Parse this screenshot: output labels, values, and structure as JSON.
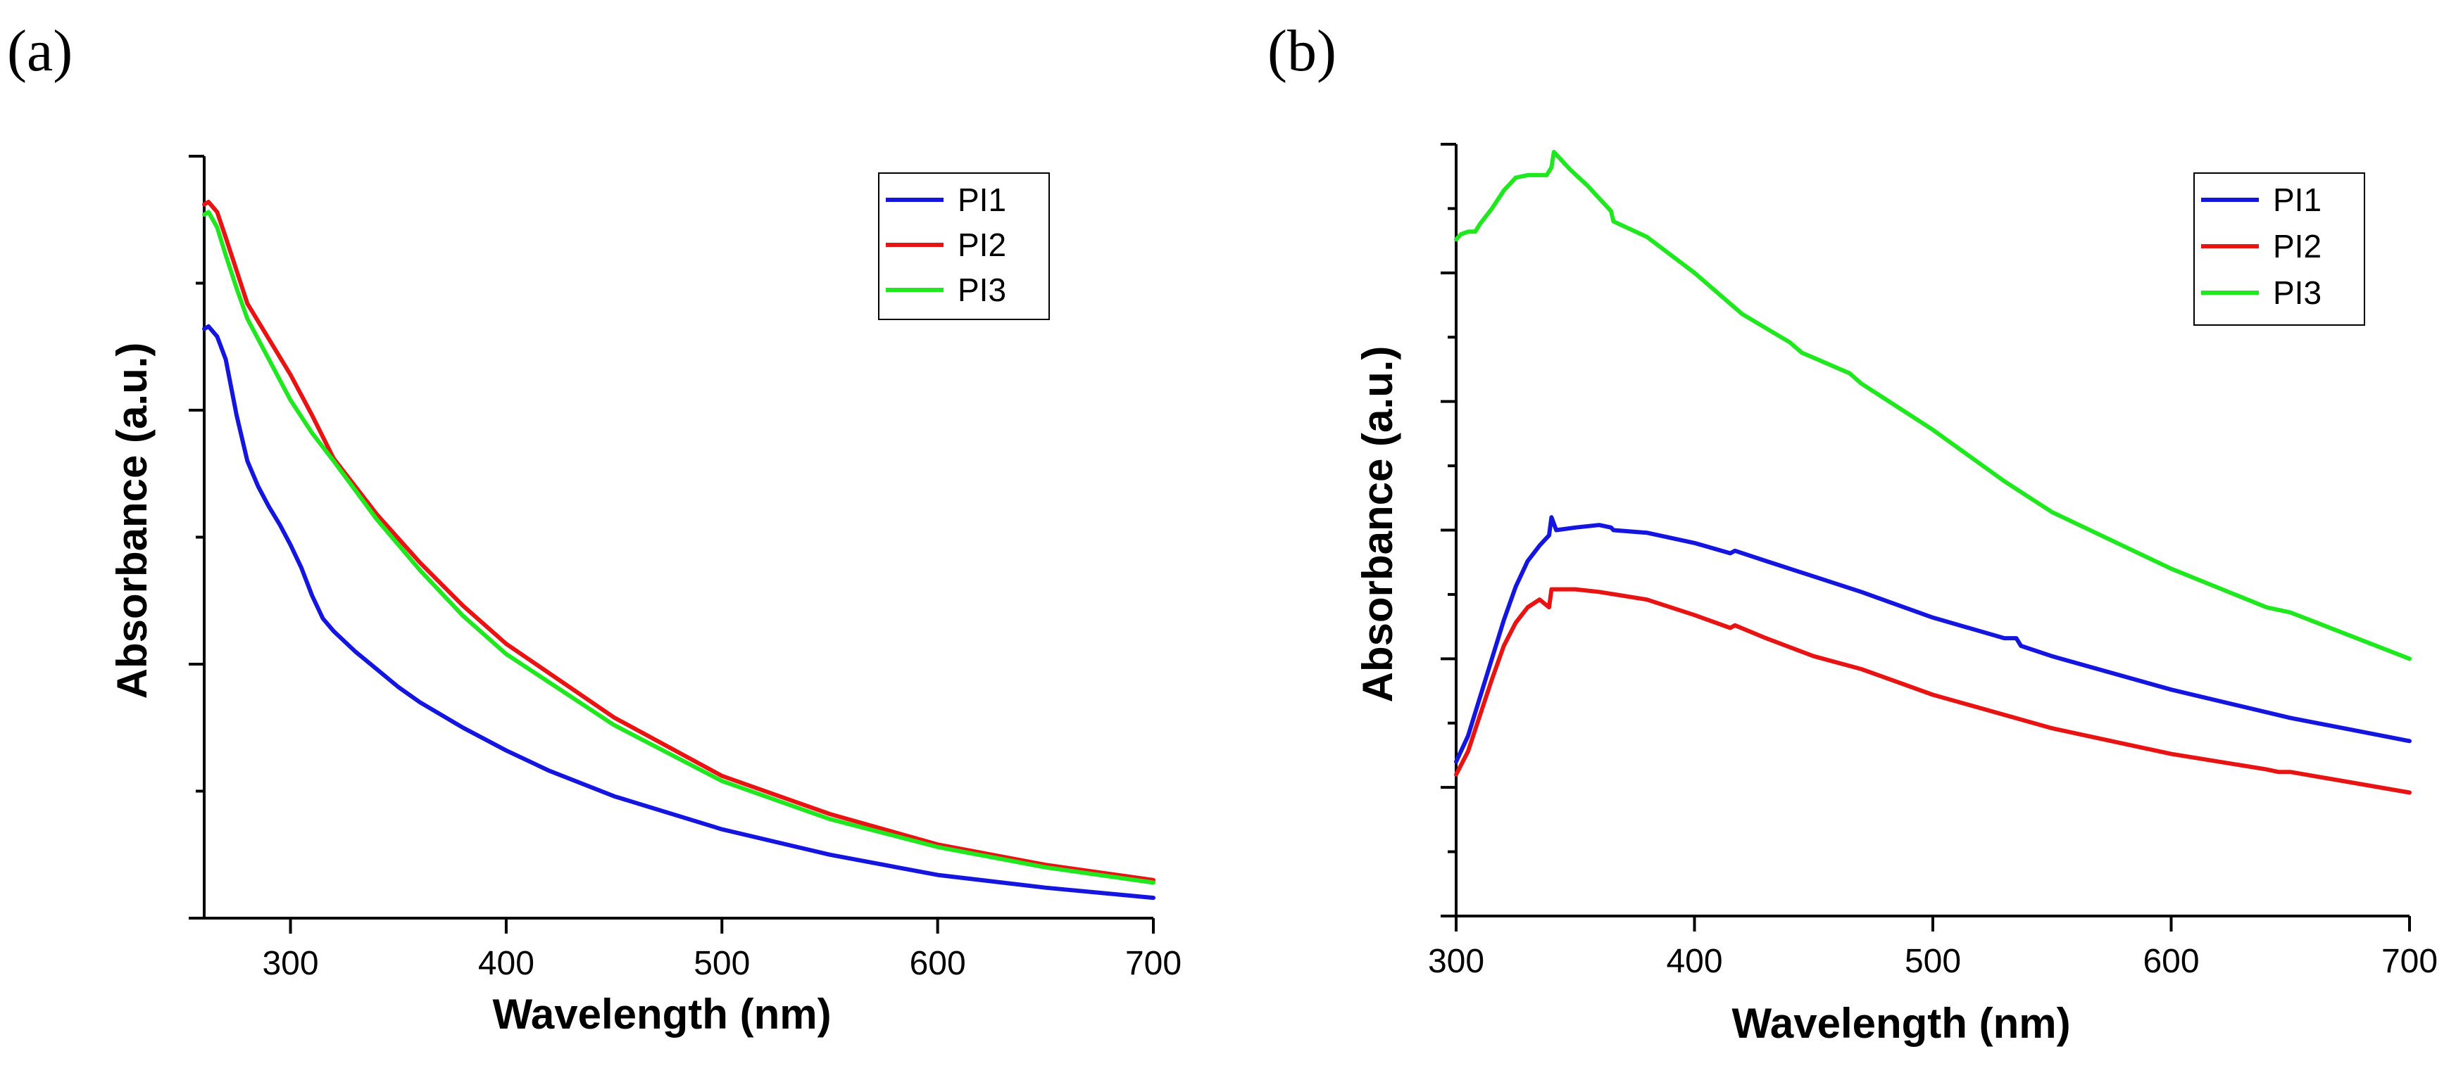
{
  "chart_data": [
    {
      "panel_label": "(a)",
      "type": "line",
      "xlabel": "Wavelength (nm)",
      "ylabel": "Absorbance (a.u.)",
      "xlim": [
        260,
        700
      ],
      "ylim": [
        0,
        3
      ],
      "xticks": [
        300,
        400,
        500,
        600,
        700
      ],
      "xtick_labels": [
        "300",
        "400",
        "500",
        "600",
        "700"
      ],
      "yticks_major": [
        0,
        1,
        2,
        3
      ],
      "yticks_minor": [
        0.5,
        1.5,
        2.5
      ],
      "y_tick_labels_shown": false,
      "legend_position": "top-right",
      "series": [
        {
          "name": "PI1",
          "color": "#1515e0",
          "x": [
            260,
            262,
            266,
            270,
            275,
            280,
            285,
            290,
            295,
            300,
            305,
            310,
            315,
            320,
            330,
            340,
            350,
            360,
            380,
            400,
            420,
            450,
            500,
            550,
            600,
            650,
            700
          ],
          "y": [
            2.32,
            2.33,
            2.29,
            2.2,
            1.98,
            1.8,
            1.7,
            1.62,
            1.55,
            1.47,
            1.38,
            1.27,
            1.18,
            1.13,
            1.05,
            0.98,
            0.91,
            0.85,
            0.75,
            0.66,
            0.58,
            0.48,
            0.35,
            0.25,
            0.17,
            0.12,
            0.08
          ]
        },
        {
          "name": "PI2",
          "color": "#e81414",
          "x": [
            260,
            262,
            266,
            270,
            275,
            280,
            290,
            300,
            310,
            320,
            340,
            360,
            380,
            400,
            450,
            500,
            550,
            600,
            650,
            700
          ],
          "y": [
            2.81,
            2.82,
            2.78,
            2.68,
            2.55,
            2.42,
            2.28,
            2.14,
            1.98,
            1.81,
            1.59,
            1.4,
            1.23,
            1.08,
            0.79,
            0.56,
            0.41,
            0.29,
            0.21,
            0.15
          ]
        },
        {
          "name": "PI3",
          "color": "#1fe81f",
          "x": [
            260,
            262,
            266,
            270,
            275,
            280,
            290,
            300,
            310,
            320,
            340,
            360,
            380,
            400,
            450,
            500,
            550,
            600,
            650,
            700
          ],
          "y": [
            2.77,
            2.78,
            2.72,
            2.61,
            2.48,
            2.36,
            2.2,
            2.04,
            1.91,
            1.8,
            1.57,
            1.37,
            1.19,
            1.04,
            0.76,
            0.54,
            0.39,
            0.28,
            0.2,
            0.14
          ]
        }
      ]
    },
    {
      "panel_label": "(b)",
      "type": "line",
      "xlabel": "Wavelength (nm)",
      "ylabel": "Absorbance (a.u.)",
      "xlim": [
        300,
        700
      ],
      "ylim": [
        0,
        3
      ],
      "xticks": [
        300,
        400,
        500,
        600,
        700
      ],
      "xtick_labels": [
        "300",
        "400",
        "500",
        "600",
        "700"
      ],
      "yticks_major": [
        0,
        0.5,
        1.0,
        1.5,
        2.0,
        2.5,
        3.0
      ],
      "yticks_minor": [
        0.25,
        0.75,
        1.25,
        1.75,
        2.25,
        2.75
      ],
      "y_tick_labels_shown": false,
      "legend_position": "top-right",
      "series": [
        {
          "name": "PI1",
          "color": "#1515e0",
          "x": [
            300,
            305,
            310,
            315,
            320,
            325,
            330,
            335,
            339,
            340,
            342,
            350,
            360,
            365,
            366,
            380,
            400,
            415,
            417,
            430,
            450,
            470,
            500,
            530,
            535,
            537,
            550,
            600,
            650,
            700
          ],
          "y": [
            0.6,
            0.7,
            0.85,
            1.0,
            1.15,
            1.28,
            1.38,
            1.44,
            1.48,
            1.55,
            1.5,
            1.51,
            1.52,
            1.51,
            1.5,
            1.49,
            1.45,
            1.41,
            1.42,
            1.38,
            1.32,
            1.26,
            1.16,
            1.08,
            1.08,
            1.05,
            1.01,
            0.88,
            0.77,
            0.68
          ]
        },
        {
          "name": "PI2",
          "color": "#e81414",
          "x": [
            300,
            305,
            310,
            315,
            320,
            325,
            330,
            335,
            339,
            340,
            342,
            350,
            360,
            380,
            400,
            415,
            417,
            430,
            450,
            470,
            500,
            550,
            600,
            640,
            645,
            650,
            700
          ],
          "y": [
            0.55,
            0.64,
            0.78,
            0.92,
            1.05,
            1.14,
            1.2,
            1.23,
            1.2,
            1.27,
            1.27,
            1.27,
            1.26,
            1.23,
            1.17,
            1.12,
            1.13,
            1.08,
            1.01,
            0.96,
            0.86,
            0.73,
            0.63,
            0.57,
            0.56,
            0.56,
            0.48
          ]
        },
        {
          "name": "PI3",
          "color": "#1fe81f",
          "x": [
            300,
            302,
            305,
            308,
            310,
            315,
            320,
            325,
            330,
            335,
            338,
            340,
            341,
            343,
            348,
            355,
            360,
            365,
            366,
            380,
            400,
            420,
            440,
            445,
            450,
            460,
            465,
            470,
            500,
            530,
            535,
            550,
            600,
            640,
            650,
            700
          ],
          "y": [
            2.63,
            2.65,
            2.66,
            2.66,
            2.69,
            2.75,
            2.82,
            2.87,
            2.88,
            2.88,
            2.88,
            2.91,
            2.97,
            2.95,
            2.9,
            2.84,
            2.79,
            2.74,
            2.7,
            2.64,
            2.5,
            2.34,
            2.23,
            2.19,
            2.17,
            2.13,
            2.11,
            2.07,
            1.89,
            1.69,
            1.66,
            1.57,
            1.35,
            1.2,
            1.18,
            1.0
          ]
        }
      ]
    }
  ]
}
